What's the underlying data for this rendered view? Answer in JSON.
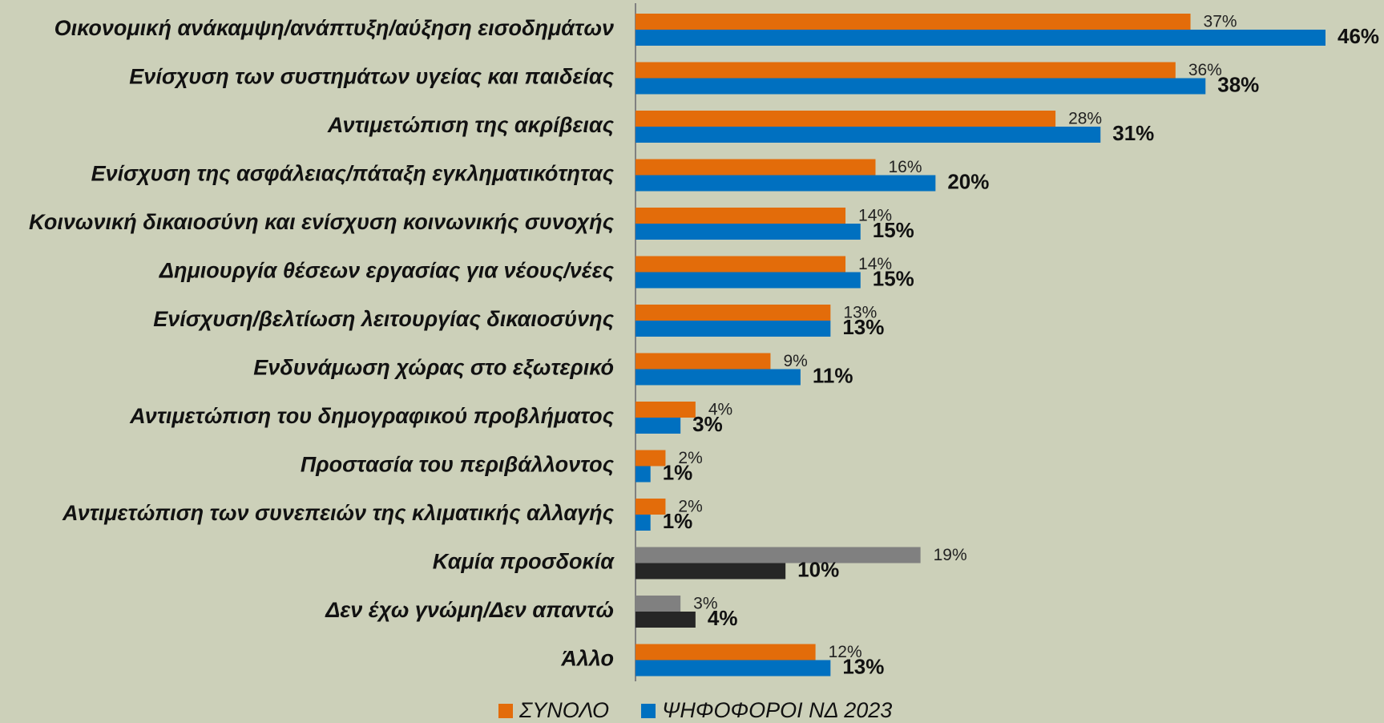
{
  "chart_data": {
    "type": "bar",
    "orientation": "horizontal",
    "categories": [
      "Οικονομική ανάκαμψη/ανάπτυξη/αύξηση εισοδημάτων",
      "Ενίσχυση των συστημάτων υγείας και παιδείας",
      "Αντιμετώπιση της ακρίβειας",
      "Ενίσχυση της ασφάλειας/πάταξη εγκληματικότητας",
      "Κοινωνική δικαιοσύνη και ενίσχυση κοινωνικής συνοχής",
      "Δημιουργία θέσεων εργασίας για νέους/νέες",
      "Ενίσχυση/βελτίωση λειτουργίας δικαιοσύνης",
      "Ενδυνάμωση χώρας στο εξωτερικό",
      "Αντιμετώπιση του δημογραφικού προβλήματος",
      "Προστασία του περιβάλλοντος",
      "Αντιμετώπιση των συνεπειών της κλιματικής αλλαγής",
      "Καμία προσδοκία",
      "Δεν έχω γνώμη/Δεν απαντώ",
      "Άλλο"
    ],
    "series": [
      {
        "name": "ΣΥΝΟΛΟ",
        "color": "#e36c0a",
        "colors": [
          "#e36c0a",
          "#e36c0a",
          "#e36c0a",
          "#e36c0a",
          "#e36c0a",
          "#e36c0a",
          "#e36c0a",
          "#e36c0a",
          "#e36c0a",
          "#e36c0a",
          "#e36c0a",
          "#808080",
          "#808080",
          "#e36c0a"
        ],
        "values": [
          37,
          36,
          28,
          16,
          14,
          14,
          13,
          9,
          4,
          2,
          2,
          19,
          3,
          12
        ],
        "value_labels": [
          "37%",
          "36%",
          "28%",
          "16%",
          "14%",
          "14%",
          "13%",
          "9%",
          "4%",
          "2%",
          "2%",
          "19%",
          "3%",
          "12%"
        ]
      },
      {
        "name": "ΨΗΦΟΦΟΡΟΙ ΝΔ 2023",
        "color": "#0070c0",
        "colors": [
          "#0070c0",
          "#0070c0",
          "#0070c0",
          "#0070c0",
          "#0070c0",
          "#0070c0",
          "#0070c0",
          "#0070c0",
          "#0070c0",
          "#0070c0",
          "#0070c0",
          "#262626",
          "#262626",
          "#0070c0"
        ],
        "values": [
          46,
          38,
          31,
          20,
          15,
          15,
          13,
          11,
          3,
          1,
          1,
          10,
          4,
          13
        ],
        "value_labels": [
          "46%",
          "38%",
          "31%",
          "20%",
          "15%",
          "15%",
          "13%",
          "11%",
          "3%",
          "1%",
          "1%",
          "10%",
          "4%",
          "13%"
        ]
      }
    ],
    "legend": "bottom"
  }
}
